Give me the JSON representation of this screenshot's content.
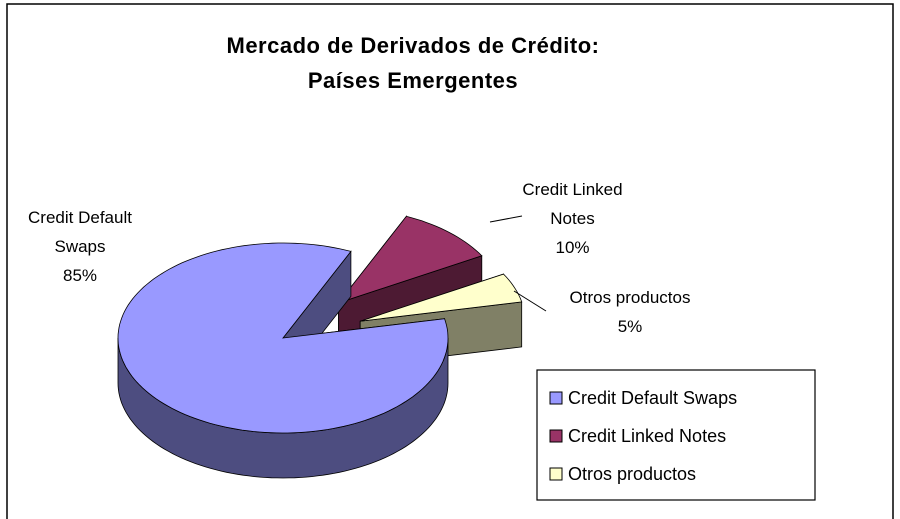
{
  "chart_data": {
    "type": "pie",
    "title": "Mercado de Derivados de Crédito:\nPaíses Emergentes",
    "categories": [
      "Credit Default Swaps",
      "Credit Linked Notes",
      "Otros productos"
    ],
    "values": [
      85,
      10,
      5
    ],
    "value_labels": [
      "85%",
      "10%",
      "5%"
    ],
    "colors": [
      "#9999FF",
      "#993366",
      "#FFFFCC"
    ],
    "legend": "right"
  }
}
